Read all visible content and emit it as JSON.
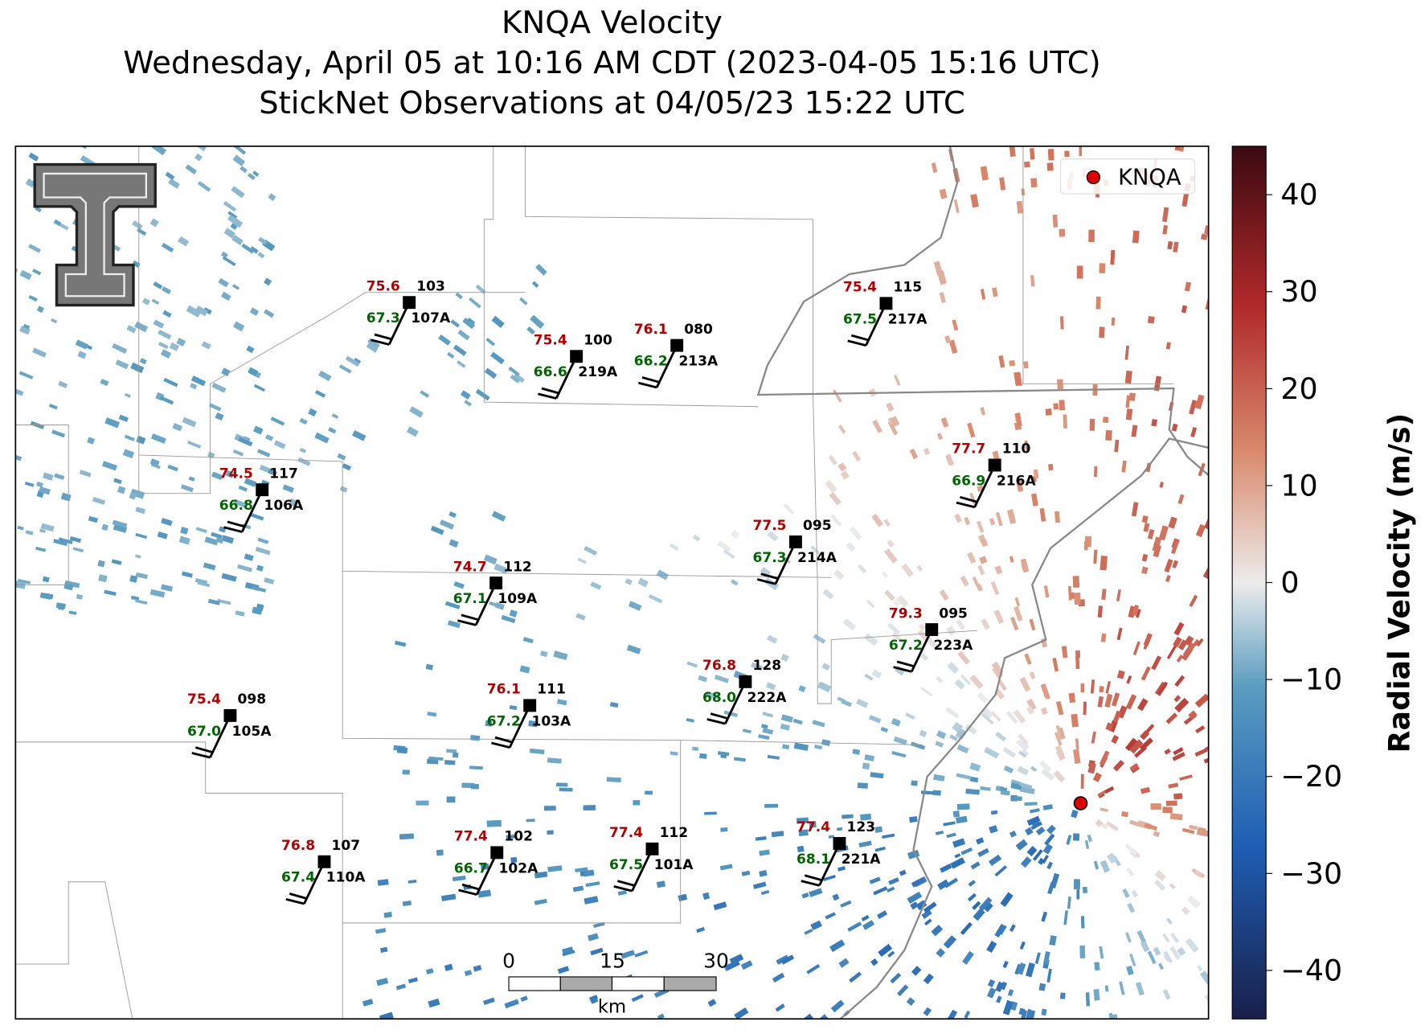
{
  "title": [
    "KNQA Velocity",
    "Wednesday, April 05 at 10:16 AM CDT (2023-04-05 15:16 UTC)",
    "StickNet Observations at 04/05/23 15:22 UTC"
  ],
  "legend": {
    "label": "KNQA"
  },
  "colorbar": {
    "label": "Radial Velocity (m/s)",
    "lim": [
      -45,
      45
    ],
    "ticks": [
      {
        "value": -40,
        "label": "−40"
      },
      {
        "value": -30,
        "label": "−30"
      },
      {
        "value": -20,
        "label": "−20"
      },
      {
        "value": -10,
        "label": "−10"
      },
      0,
      10,
      20,
      30,
      40
    ]
  },
  "scale_bar": {
    "ticks": [
      0,
      15,
      30
    ],
    "unit": "km"
  },
  "stations": [
    {
      "id": "107A",
      "temp": "75.6",
      "dewpoint": "67.3",
      "code": "103"
    },
    {
      "id": "219A",
      "temp": "75.4",
      "dewpoint": "66.6",
      "code": "100"
    },
    {
      "id": "213A",
      "temp": "76.1",
      "dewpoint": "66.2",
      "code": "080"
    },
    {
      "id": "217A",
      "temp": "75.4",
      "dewpoint": "67.5",
      "code": "115"
    },
    {
      "id": "106A",
      "temp": "74.5",
      "dewpoint": "66.8",
      "code": "117"
    },
    {
      "id": "216A",
      "temp": "77.7",
      "dewpoint": "66.9",
      "code": "110"
    },
    {
      "id": "214A",
      "temp": "77.5",
      "dewpoint": "67.3",
      "code": "095"
    },
    {
      "id": "109A",
      "temp": "74.7",
      "dewpoint": "67.1",
      "code": "112"
    },
    {
      "id": "223A",
      "temp": "79.3",
      "dewpoint": "67.2",
      "code": "095"
    },
    {
      "id": "222A",
      "temp": "76.8",
      "dewpoint": "68.0",
      "code": "128"
    },
    {
      "id": "105A",
      "temp": "75.4",
      "dewpoint": "67.0",
      "code": "098"
    },
    {
      "id": "103A",
      "temp": "76.1",
      "dewpoint": "67.2",
      "code": "111"
    },
    {
      "id": "221A",
      "temp": "77.4",
      "dewpoint": "68.1",
      "code": "123"
    },
    {
      "id": "101A",
      "temp": "77.4",
      "dewpoint": "67.5",
      "code": "112"
    },
    {
      "id": "102A",
      "temp": "77.4",
      "dewpoint": "66.7",
      "code": "102"
    },
    {
      "id": "110A",
      "temp": "76.8",
      "dewpoint": "67.4",
      "code": "107"
    }
  ]
}
